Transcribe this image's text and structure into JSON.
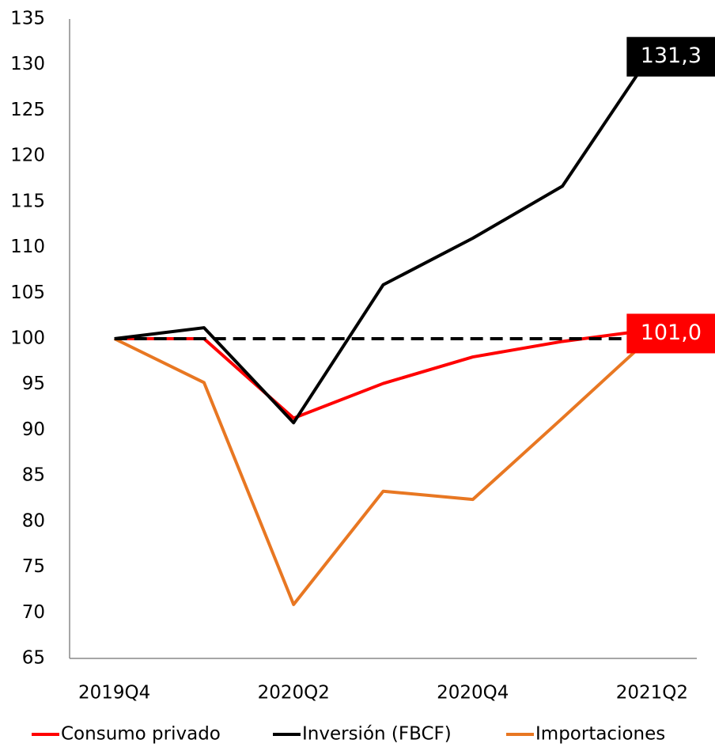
{
  "chart_data": {
    "type": "line",
    "categories": [
      "2019Q4",
      null,
      "2020Q2",
      null,
      "2020Q4",
      null,
      "2021Q2"
    ],
    "series": [
      {
        "name": "Consumo privado",
        "color": "#ff0000",
        "values": [
          100,
          100,
          91.3,
          95.1,
          98.0,
          99.7,
          101.0
        ],
        "value_labels": [
          null,
          null,
          null,
          null,
          null,
          null,
          "101,0"
        ]
      },
      {
        "name": "Inversión (FBCF)",
        "color": "#000000",
        "values": [
          100,
          101.2,
          90.8,
          105.9,
          111.0,
          116.7,
          131.3
        ],
        "value_labels": [
          null,
          null,
          null,
          null,
          null,
          null,
          "131,3"
        ]
      },
      {
        "name": "Importaciones",
        "color": "#e87722",
        "values": [
          100,
          95.2,
          70.9,
          83.3,
          82.4,
          91.3,
          100.3
        ]
      }
    ],
    "reference_line": 100,
    "ylim": [
      65,
      135
    ],
    "yticks": [
      65,
      70,
      75,
      80,
      85,
      90,
      95,
      100,
      105,
      110,
      115,
      120,
      125,
      130,
      135
    ],
    "grid": false
  }
}
